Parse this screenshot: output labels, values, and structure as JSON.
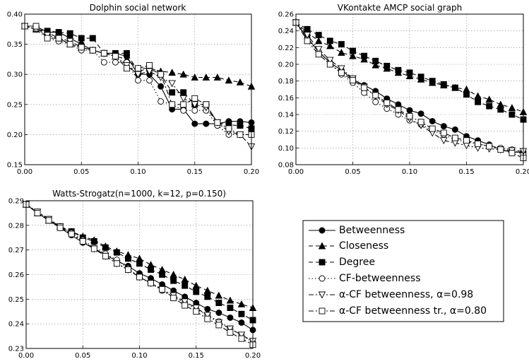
{
  "markers": [
    "circle",
    "triangle",
    "square",
    "circle-open",
    "triangle-down-open",
    "square-open"
  ],
  "line_styles": [
    "solid",
    "dashed",
    "dashed",
    "dotted",
    "dashdot",
    "dashdot"
  ],
  "colors": {
    "line": "#000000",
    "grid": "#888888",
    "background": "#ffffff"
  },
  "legend": {
    "entries": [
      {
        "label": "Betweenness"
      },
      {
        "label": "Closeness"
      },
      {
        "label": "Degree"
      },
      {
        "label": "CF-betweenness"
      },
      {
        "label": "α-CF betweenness, α=0.98"
      },
      {
        "label": "α-CF betweenness tr., α=0.80"
      }
    ]
  },
  "chart_data": [
    {
      "type": "line",
      "title": "Dolphin social network",
      "xlim": [
        0,
        0.2
      ],
      "ylim": [
        0.15,
        0.4
      ],
      "xticks": [
        "0.00",
        "0.05",
        "0.10",
        "0.15",
        "0.20"
      ],
      "yticks": [
        "0.15",
        "0.20",
        "0.25",
        "0.30",
        "0.35",
        "0.40"
      ],
      "grid": true,
      "x": [
        0.0,
        0.01,
        0.02,
        0.03,
        0.04,
        0.05,
        0.06,
        0.07,
        0.08,
        0.09,
        0.1,
        0.11,
        0.12,
        0.13,
        0.14,
        0.15,
        0.16,
        0.17,
        0.18,
        0.19,
        0.2
      ],
      "series": [
        {
          "name": "Betweenness",
          "values": [
            0.38,
            0.38,
            0.37,
            0.37,
            0.36,
            0.35,
            0.34,
            0.335,
            0.335,
            0.33,
            0.3,
            0.3,
            0.28,
            0.242,
            0.242,
            0.218,
            0.218,
            0.218,
            0.222,
            0.222,
            0.22
          ]
        },
        {
          "name": "Closeness",
          "values": [
            0.38,
            0.375,
            0.37,
            0.36,
            0.35,
            0.345,
            0.34,
            0.335,
            0.33,
            0.325,
            0.31,
            0.31,
            0.305,
            0.303,
            0.3,
            0.295,
            0.295,
            0.295,
            0.29,
            0.287,
            0.28
          ]
        },
        {
          "name": "Degree",
          "values": [
            0.38,
            0.375,
            0.372,
            0.37,
            0.368,
            0.36,
            0.36,
            0.335,
            0.335,
            0.335,
            0.305,
            0.31,
            0.3,
            0.27,
            0.27,
            0.25,
            0.25,
            0.22,
            0.216,
            0.215,
            0.21
          ]
        },
        {
          "name": "CF-betweenness",
          "values": [
            0.38,
            0.375,
            0.36,
            0.355,
            0.35,
            0.34,
            0.34,
            0.32,
            0.32,
            0.32,
            0.29,
            0.29,
            0.255,
            0.25,
            0.24,
            0.24,
            0.24,
            0.215,
            0.2,
            0.2,
            0.2
          ]
        },
        {
          "name": "α-CF betweenness, α=0.98",
          "values": [
            0.38,
            0.375,
            0.365,
            0.36,
            0.355,
            0.345,
            0.34,
            0.335,
            0.33,
            0.315,
            0.3,
            0.305,
            0.295,
            0.285,
            0.26,
            0.25,
            0.245,
            0.22,
            0.205,
            0.2,
            0.18
          ]
        },
        {
          "name": "α-CF betweenness tr., α=0.80",
          "values": [
            0.38,
            0.38,
            0.36,
            0.36,
            0.35,
            0.345,
            0.34,
            0.335,
            0.33,
            0.31,
            0.31,
            0.315,
            0.3,
            0.25,
            0.25,
            0.26,
            0.25,
            0.22,
            0.21,
            0.2,
            0.2
          ]
        }
      ]
    },
    {
      "type": "line",
      "title": "VKontakte AMCP social graph",
      "xlim": [
        0,
        0.2
      ],
      "ylim": [
        0.08,
        0.26
      ],
      "xticks": [
        "0.00",
        "0.05",
        "0.10",
        "0.15",
        "0.20"
      ],
      "yticks": [
        "0.08",
        "0.10",
        "0.12",
        "0.14",
        "0.16",
        "0.18",
        "0.20",
        "0.22",
        "0.24",
        "0.26"
      ],
      "grid": true,
      "x": [
        0.0,
        0.01,
        0.02,
        0.03,
        0.04,
        0.05,
        0.06,
        0.07,
        0.08,
        0.09,
        0.1,
        0.11,
        0.12,
        0.13,
        0.14,
        0.15,
        0.16,
        0.17,
        0.18,
        0.19,
        0.2
      ],
      "series": [
        {
          "name": "Betweenness",
          "values": [
            0.25,
            0.232,
            0.215,
            0.202,
            0.193,
            0.182,
            0.175,
            0.168,
            0.159,
            0.152,
            0.145,
            0.141,
            0.132,
            0.126,
            0.122,
            0.114,
            0.109,
            0.104,
            0.098,
            0.095,
            0.095
          ]
        },
        {
          "name": "Closeness",
          "values": [
            0.25,
            0.238,
            0.228,
            0.222,
            0.214,
            0.21,
            0.206,
            0.199,
            0.195,
            0.19,
            0.186,
            0.182,
            0.178,
            0.175,
            0.172,
            0.17,
            0.162,
            0.158,
            0.152,
            0.148,
            0.143
          ]
        },
        {
          "name": "Degree",
          "values": [
            0.25,
            0.242,
            0.235,
            0.228,
            0.224,
            0.216,
            0.21,
            0.204,
            0.198,
            0.193,
            0.19,
            0.185,
            0.18,
            0.176,
            0.172,
            0.164,
            0.155,
            0.15,
            0.146,
            0.14,
            0.134
          ]
        },
        {
          "name": "CF-betweenness",
          "values": [
            0.25,
            0.23,
            0.215,
            0.202,
            0.188,
            0.178,
            0.166,
            0.155,
            0.147,
            0.14,
            0.133,
            0.128,
            0.121,
            0.116,
            0.11,
            0.107,
            0.105,
            0.102,
            0.1,
            0.098,
            0.092
          ]
        },
        {
          "name": "α-CF betweenness, α=0.98",
          "values": [
            0.25,
            0.235,
            0.218,
            0.205,
            0.195,
            0.183,
            0.173,
            0.162,
            0.152,
            0.145,
            0.135,
            0.127,
            0.118,
            0.109,
            0.106,
            0.103,
            0.1,
            0.099,
            0.098,
            0.097,
            0.096
          ]
        },
        {
          "name": "α-CF betweenness tr., α=0.80",
          "values": [
            0.25,
            0.228,
            0.212,
            0.2,
            0.19,
            0.181,
            0.172,
            0.163,
            0.154,
            0.146,
            0.138,
            0.131,
            0.123,
            0.118,
            0.112,
            0.109,
            0.105,
            0.102,
            0.098,
            0.094,
            0.088
          ]
        }
      ]
    },
    {
      "type": "line",
      "title": "Watts-Strogatz(n=1000, k=12, p=0.150)",
      "xlim": [
        0,
        0.2
      ],
      "ylim": [
        0.23,
        0.29
      ],
      "xticks": [
        "0.00",
        "0.05",
        "0.10",
        "0.15",
        "0.20"
      ],
      "yticks": [
        "0.23",
        "0.24",
        "0.25",
        "0.26",
        "0.27",
        "0.28",
        "0.29"
      ],
      "grid": true,
      "x": [
        0.0,
        0.01,
        0.02,
        0.03,
        0.04,
        0.05,
        0.06,
        0.07,
        0.08,
        0.09,
        0.1,
        0.11,
        0.12,
        0.13,
        0.14,
        0.15,
        0.16,
        0.17,
        0.18,
        0.19,
        0.2
      ],
      "series": [
        {
          "name": "Betweenness",
          "values": [
            0.2885,
            0.285,
            0.282,
            0.279,
            0.276,
            0.273,
            0.2705,
            0.268,
            0.2655,
            0.2635,
            0.2605,
            0.2585,
            0.256,
            0.2535,
            0.251,
            0.2485,
            0.246,
            0.2445,
            0.2425,
            0.2405,
            0.2375
          ]
        },
        {
          "name": "Closeness",
          "values": [
            0.2885,
            0.285,
            0.282,
            0.2795,
            0.2775,
            0.2755,
            0.274,
            0.2715,
            0.2695,
            0.268,
            0.2665,
            0.264,
            0.262,
            0.26,
            0.258,
            0.2555,
            0.2535,
            0.2515,
            0.2495,
            0.248,
            0.2465
          ]
        },
        {
          "name": "Degree",
          "values": [
            0.2885,
            0.285,
            0.282,
            0.2795,
            0.2775,
            0.275,
            0.2735,
            0.271,
            0.269,
            0.2665,
            0.2645,
            0.262,
            0.26,
            0.2575,
            0.2555,
            0.253,
            0.251,
            0.2485,
            0.2465,
            0.244,
            0.2415
          ]
        },
        {
          "name": "CF-betweenness",
          "values": [
            0.2885,
            0.2855,
            0.2825,
            0.2795,
            0.277,
            0.274,
            0.271,
            0.2685,
            0.266,
            0.2625,
            0.259,
            0.2565,
            0.2535,
            0.251,
            0.2485,
            0.246,
            0.2435,
            0.241,
            0.238,
            0.2355,
            0.2325
          ]
        },
        {
          "name": "α-CF betweenness, α=0.98",
          "values": [
            0.2885,
            0.2855,
            0.2825,
            0.2795,
            0.2765,
            0.2735,
            0.2705,
            0.2675,
            0.2645,
            0.262,
            0.259,
            0.2565,
            0.254,
            0.2515,
            0.249,
            0.2465,
            0.2435,
            0.2405,
            0.238,
            0.2355,
            0.233
          ]
        },
        {
          "name": "α-CF betweenness tr., α=0.80",
          "values": [
            0.2885,
            0.285,
            0.282,
            0.279,
            0.2765,
            0.2735,
            0.2705,
            0.2675,
            0.2645,
            0.262,
            0.259,
            0.2565,
            0.254,
            0.2505,
            0.2475,
            0.245,
            0.242,
            0.2395,
            0.2365,
            0.234,
            0.2315
          ]
        }
      ]
    }
  ]
}
